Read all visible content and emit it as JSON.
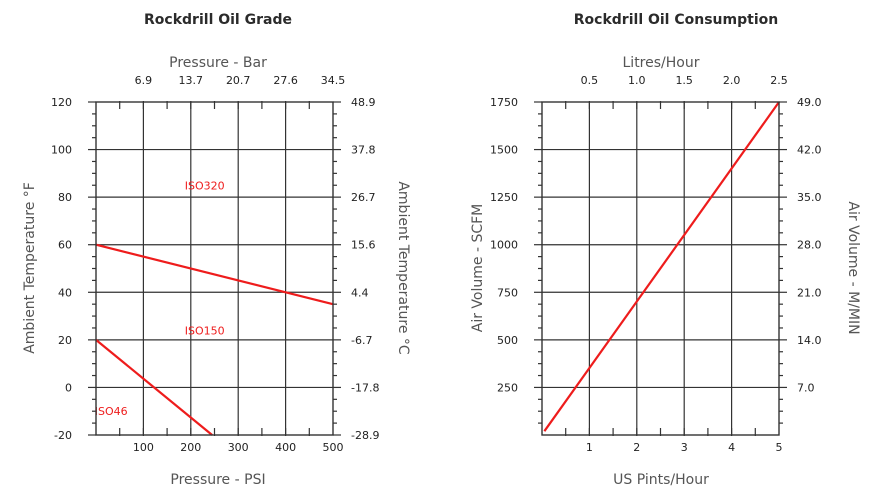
{
  "chart_data": [
    {
      "type": "line",
      "title": "Rockdrill Oil Grade",
      "xlabel": "Pressure - PSI",
      "ylabel": "Ambient Temperature °F",
      "x2label": "Pressure - Bar",
      "y2label": "Ambient Temperature °C",
      "xlim": [
        0,
        500
      ],
      "ylim": [
        -20,
        120
      ],
      "x_ticks": [
        100,
        200,
        300,
        400,
        500
      ],
      "y_ticks": [
        -20,
        0,
        20,
        40,
        60,
        80,
        100,
        120
      ],
      "x2_ticks": [
        {
          "label": "6.9",
          "at": 100
        },
        {
          "label": "13.7",
          "at": 200
        },
        {
          "label": "20.7",
          "at": 300
        },
        {
          "label": "27.6",
          "at": 400
        },
        {
          "label": "34.5",
          "at": 500
        }
      ],
      "y2_ticks": [
        {
          "label": "-28.9",
          "at": -20
        },
        {
          "label": "-17.8",
          "at": 0
        },
        {
          "label": "-6.7",
          "at": 20
        },
        {
          "label": "4.4",
          "at": 40
        },
        {
          "label": "15.6",
          "at": 60
        },
        {
          "label": "26.7",
          "at": 80
        },
        {
          "label": "37.8",
          "at": 100
        },
        {
          "label": "48.9",
          "at": 120
        }
      ],
      "grid": true,
      "series": [
        {
          "x": [
            0,
            500
          ],
          "y": [
            60,
            35
          ],
          "color": "#ee1c1c"
        },
        {
          "x": [
            0,
            245
          ],
          "y": [
            20,
            -20
          ],
          "color": "#ee1c1c"
        }
      ],
      "annotations": [
        {
          "text": "ISO320",
          "x": 200,
          "y": 85
        },
        {
          "text": "ISO150",
          "x": 200,
          "y": 24
        },
        {
          "text": "ISO46",
          "x": 10,
          "y": -10
        }
      ]
    },
    {
      "type": "line",
      "title": "Rockdrill Oil Consumption",
      "xlabel": "US Pints/Hour",
      "ylabel": "Air Volume - SCFM",
      "x2label": "Litres/Hour",
      "y2label": "Air Volume - M/MIN",
      "xlim": [
        0,
        5
      ],
      "ylim": [
        0,
        1750
      ],
      "x_ticks": [
        1,
        2,
        3,
        4,
        5
      ],
      "y_ticks": [
        250,
        500,
        750,
        1000,
        1250,
        1500,
        1750
      ],
      "x2_ticks": [
        {
          "label": "0.5",
          "at": 1
        },
        {
          "label": "1.0",
          "at": 2
        },
        {
          "label": "1.5",
          "at": 3
        },
        {
          "label": "2.0",
          "at": 4
        },
        {
          "label": "2.5",
          "at": 5
        }
      ],
      "y2_ticks": [
        {
          "label": "7.0",
          "at": 250
        },
        {
          "label": "14.0",
          "at": 500
        },
        {
          "label": "21.0",
          "at": 750
        },
        {
          "label": "28.0",
          "at": 1000
        },
        {
          "label": "35.0",
          "at": 1250
        },
        {
          "label": "42.0",
          "at": 1500
        },
        {
          "label": "49.0",
          "at": 1750
        }
      ],
      "grid": true,
      "series": [
        {
          "x": [
            0.05,
            5
          ],
          "y": [
            20,
            1750
          ],
          "color": "#ee1c1c"
        }
      ],
      "annotations": []
    }
  ]
}
